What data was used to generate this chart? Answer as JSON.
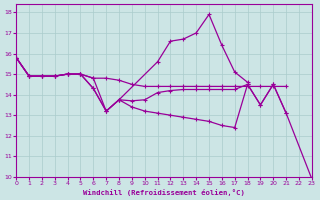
{
  "color": "#990099",
  "bg_color": "#cce5e5",
  "grid_color": "#aacccc",
  "xlabel": "Windchill (Refroidissement éolien,°C)",
  "ylim": [
    10,
    18.4
  ],
  "xlim": [
    0,
    23
  ],
  "yticks": [
    10,
    11,
    12,
    13,
    14,
    15,
    16,
    17,
    18
  ],
  "xticks": [
    0,
    1,
    2,
    3,
    4,
    5,
    6,
    7,
    8,
    9,
    10,
    11,
    12,
    13,
    14,
    15,
    16,
    17,
    18,
    19,
    20,
    21,
    22,
    23
  ],
  "lA_x": [
    0,
    1,
    2,
    3,
    4,
    5,
    6,
    7,
    8,
    9,
    10,
    11,
    12,
    13,
    14,
    15,
    16,
    17,
    18,
    19,
    20,
    21
  ],
  "lA_y": [
    15.8,
    14.9,
    14.9,
    14.9,
    15.0,
    15.0,
    14.8,
    14.8,
    14.7,
    14.5,
    14.4,
    14.4,
    14.4,
    14.4,
    14.4,
    14.4,
    14.4,
    14.4,
    14.4,
    14.4,
    14.4,
    14.4
  ],
  "lB_x": [
    0,
    1,
    2,
    3,
    4,
    5,
    6,
    7,
    8,
    11,
    12,
    13,
    14,
    15,
    16,
    17,
    18
  ],
  "lB_y": [
    15.8,
    14.9,
    14.9,
    14.9,
    15.0,
    15.0,
    14.8,
    13.2,
    13.75,
    15.6,
    16.6,
    16.7,
    17.0,
    17.9,
    16.4,
    15.1,
    14.6
  ],
  "lC_x": [
    0,
    1,
    2,
    3,
    4,
    5,
    6,
    7,
    8,
    9,
    10,
    11,
    12,
    13,
    14,
    15,
    16,
    17,
    18,
    19,
    20,
    21
  ],
  "lC_y": [
    15.8,
    14.9,
    14.9,
    14.9,
    15.0,
    15.0,
    14.3,
    13.2,
    13.75,
    13.7,
    13.75,
    14.1,
    14.2,
    14.25,
    14.25,
    14.25,
    14.25,
    14.25,
    14.5,
    13.5,
    14.5,
    13.1
  ],
  "lD_x": [
    0,
    1,
    2,
    3,
    4,
    5,
    6,
    7,
    8,
    9,
    10,
    11,
    12,
    13,
    14,
    15,
    16,
    17,
    18,
    19,
    20,
    21,
    23
  ],
  "lD_y": [
    15.8,
    14.9,
    14.9,
    14.9,
    15.0,
    15.0,
    14.3,
    13.2,
    13.75,
    13.4,
    13.2,
    13.1,
    13.0,
    12.9,
    12.8,
    12.7,
    12.5,
    12.4,
    14.5,
    13.5,
    14.5,
    13.1,
    9.9
  ]
}
